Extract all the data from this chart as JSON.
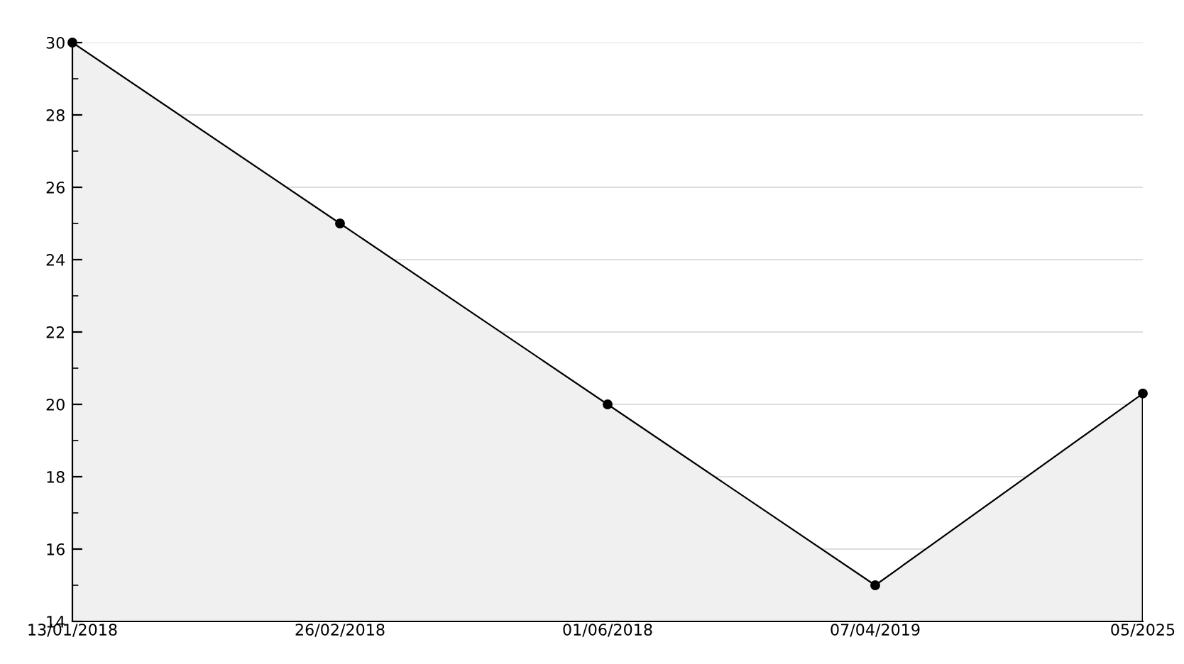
{
  "chart_data": {
    "type": "area",
    "categories": [
      "13/01/2018",
      "26/02/2018",
      "01/06/2018",
      "07/04/2019",
      "05/2025"
    ],
    "series": [
      {
        "color": "#000000",
        "values": [
          30,
          25,
          20,
          15,
          20.3
        ]
      }
    ],
    "ylim": [
      14,
      30
    ],
    "yticks": [
      14,
      {
        "value": 15,
        "label": null
      },
      16,
      {
        "value": 17,
        "label": null
      },
      18,
      {
        "value": 19,
        "label": null
      },
      20,
      {
        "value": 21,
        "label": null
      },
      22,
      {
        "value": 23,
        "label": null
      },
      24,
      {
        "value": 25,
        "label": null
      },
      26,
      {
        "value": 27,
        "label": null
      },
      28,
      {
        "value": 29,
        "label": null
      },
      30
    ],
    "grid": "y",
    "marker": "circle",
    "line_style": "solid"
  }
}
